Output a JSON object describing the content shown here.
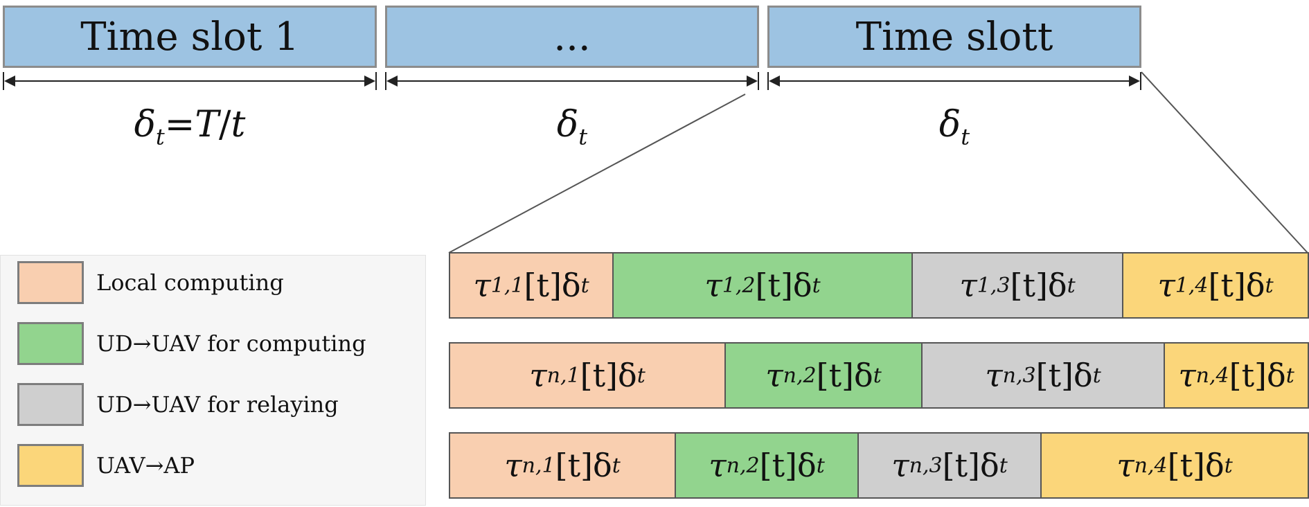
{
  "colors": {
    "slot": "#9dc3e2",
    "local": "#f9cfb0",
    "computing": "#92d48e",
    "relaying": "#cfcfcf",
    "uav_ap": "#fbd67a"
  },
  "slots": [
    {
      "label": "Time slot 1",
      "duration": "δt=T/t"
    },
    {
      "label": "...",
      "duration": "δt"
    },
    {
      "label": "Time slott",
      "duration": "δt"
    }
  ],
  "legend": [
    {
      "key": "local",
      "label": "Local computing"
    },
    {
      "key": "computing",
      "label": "UD→UAV for computing"
    },
    {
      "key": "relaying",
      "label": "UD→UAV for relaying"
    },
    {
      "key": "uav_ap",
      "label": "UAV→AP"
    }
  ],
  "rows": [
    {
      "segments": [
        {
          "key": "local",
          "tau": "τ",
          "sub": "1,1",
          "rest": "[t]δ",
          "rsub": "t"
        },
        {
          "key": "computing",
          "tau": "τ",
          "sub": "1,2",
          "rest": "[t]δ",
          "rsub": "t"
        },
        {
          "key": "relaying",
          "tau": "τ",
          "sub": "1,3",
          "rest": "[t]δ",
          "rsub": "t"
        },
        {
          "key": "uav_ap",
          "tau": "τ",
          "sub": "1,4",
          "rest": "[t]δ",
          "rsub": "t"
        }
      ]
    },
    {
      "segments": [
        {
          "key": "local",
          "tau": "τ",
          "sub": "n,1",
          "rest": "[t]δ",
          "rsub": "t"
        },
        {
          "key": "computing",
          "tau": "τ",
          "sub": "n,2",
          "rest": "[t]δ",
          "rsub": "t"
        },
        {
          "key": "relaying",
          "tau": "τ",
          "sub": "n,3",
          "rest": "[t]δ",
          "rsub": "t"
        },
        {
          "key": "uav_ap",
          "tau": "τ",
          "sub": "n,4",
          "rest": "[t]δ",
          "rsub": "t"
        }
      ]
    },
    {
      "segments": [
        {
          "key": "local",
          "tau": "τ",
          "sub": "n,1",
          "rest": "[t]δ",
          "rsub": "t"
        },
        {
          "key": "computing",
          "tau": "τ",
          "sub": "n,2",
          "rest": "[t]δ",
          "rsub": "t"
        },
        {
          "key": "relaying",
          "tau": "τ",
          "sub": "n,3",
          "rest": "[t]δ",
          "rsub": "t"
        },
        {
          "key": "uav_ap",
          "tau": "τ",
          "sub": "n,4",
          "rest": "[t]δ",
          "rsub": "t"
        }
      ]
    }
  ]
}
